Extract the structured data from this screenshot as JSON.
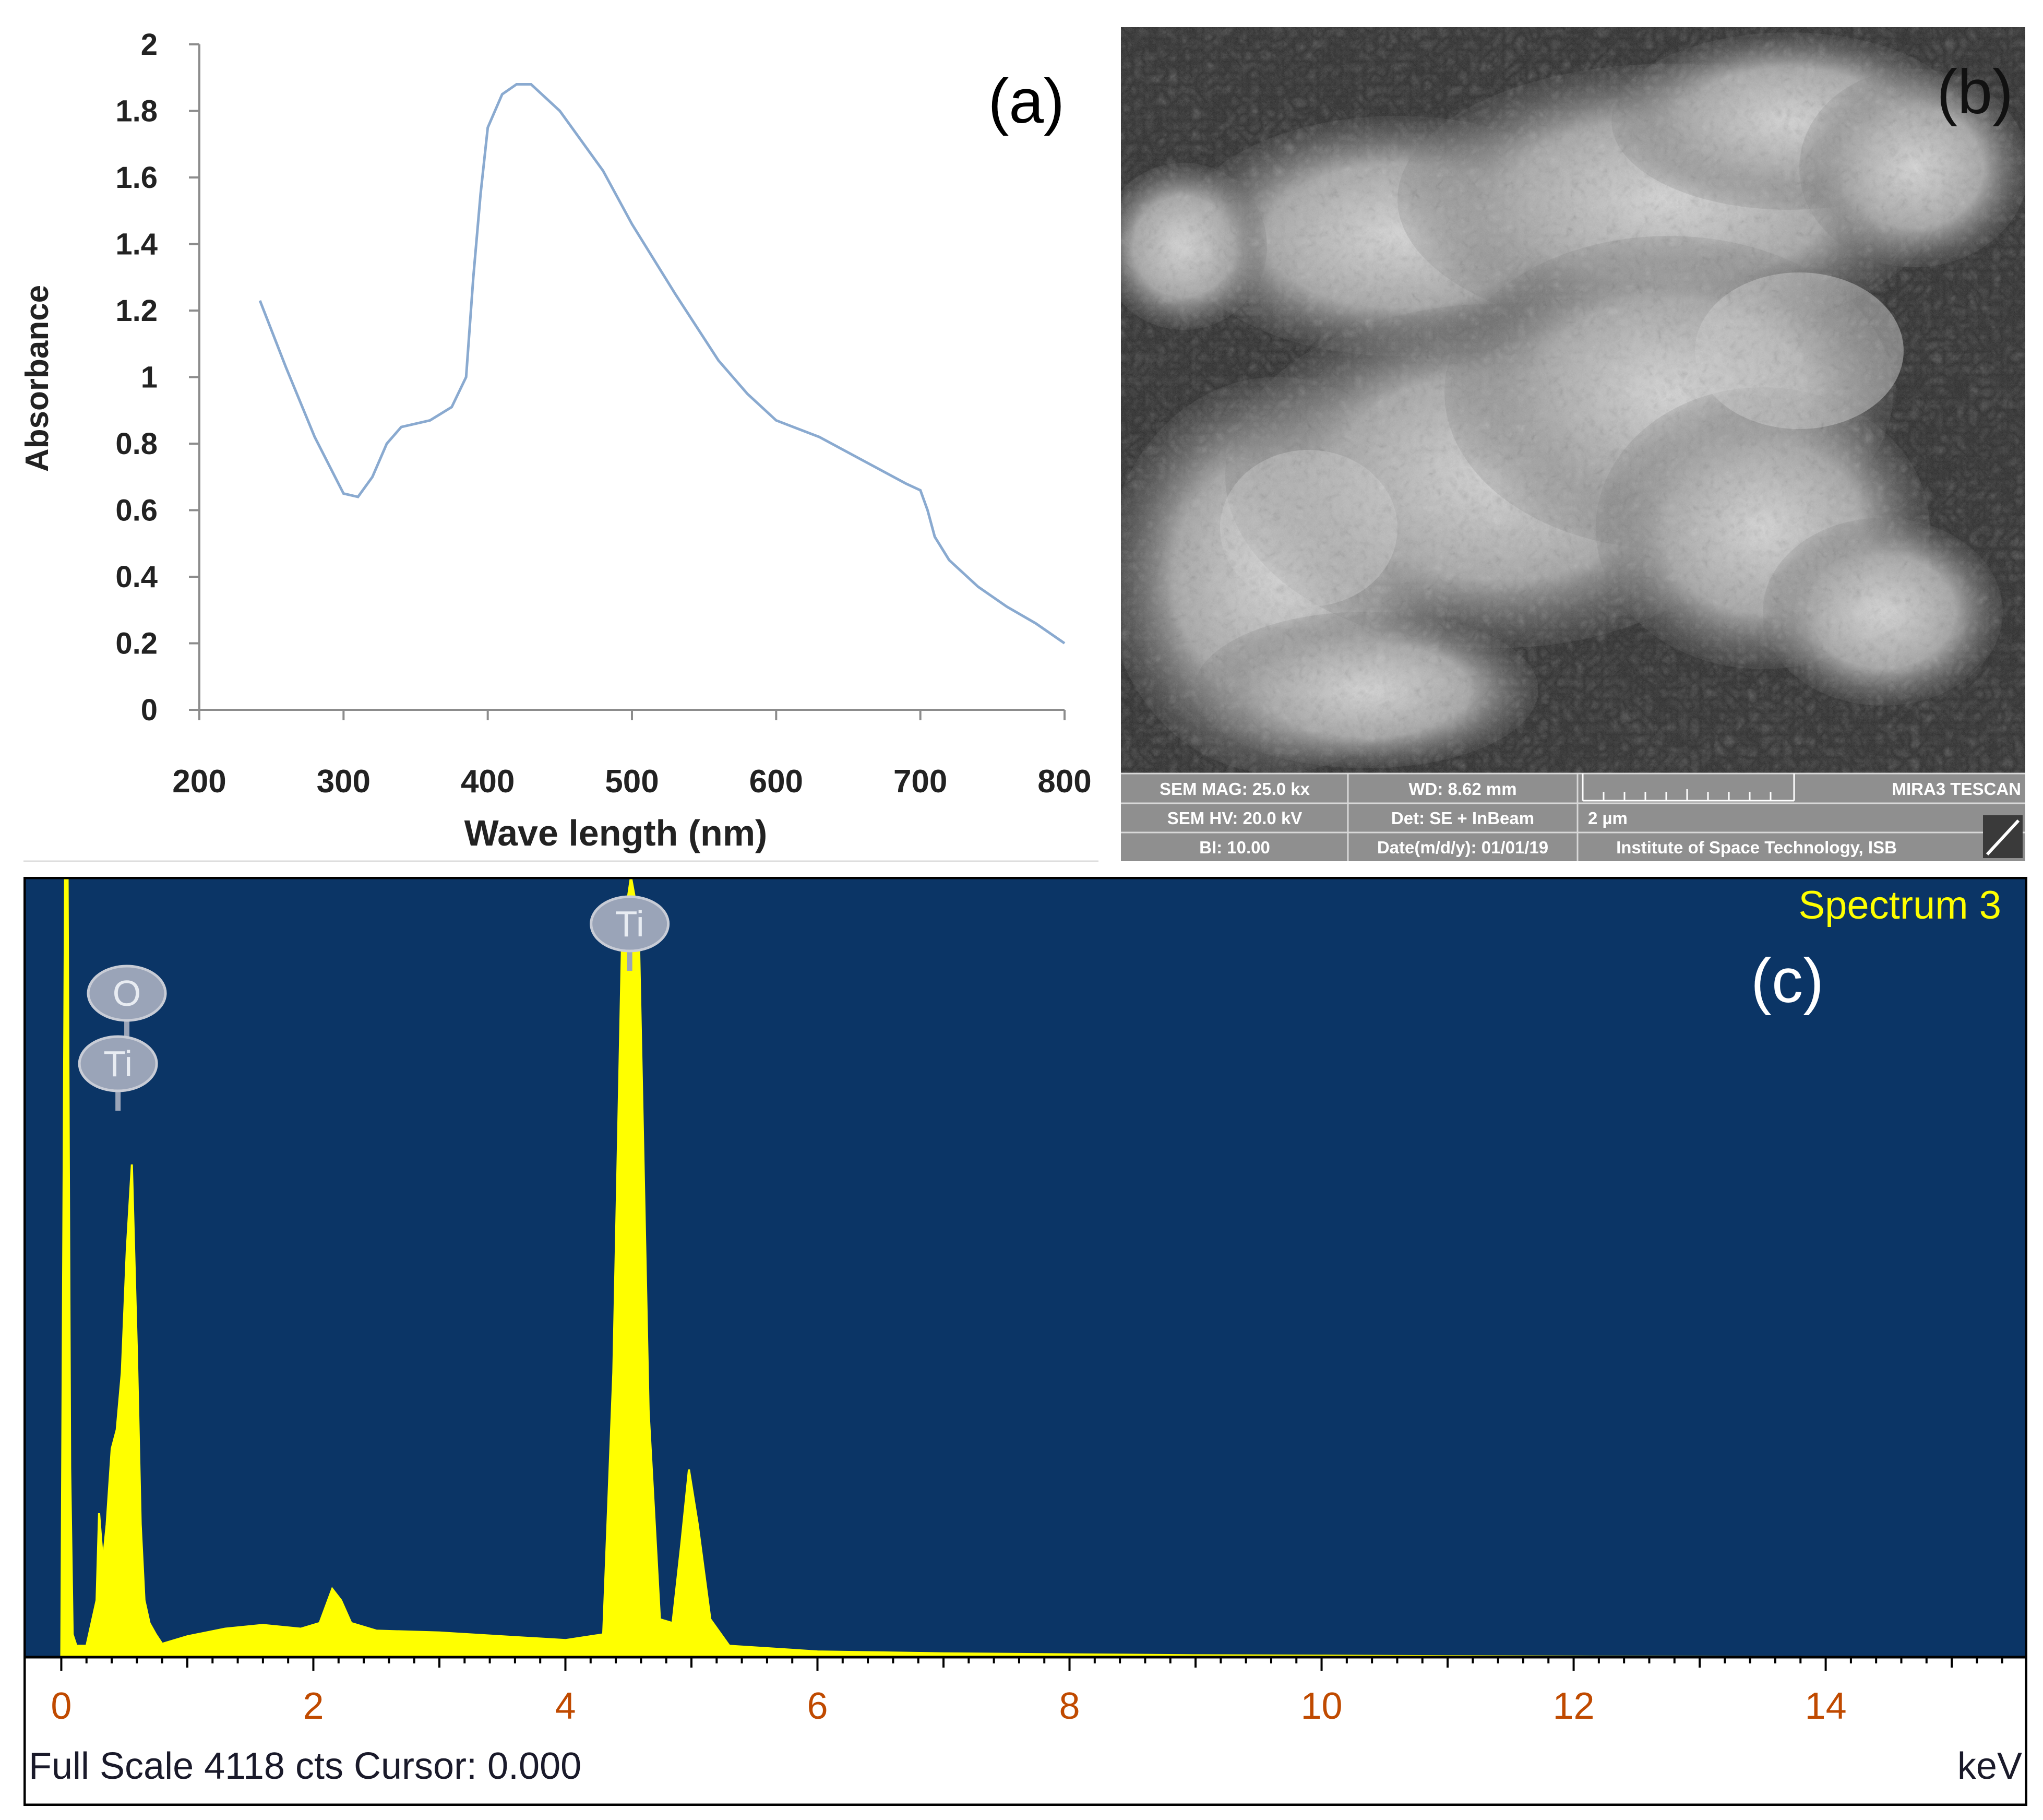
{
  "panels": {
    "a": {
      "tag": "(a)",
      "chart_data": {
        "type": "line",
        "title": "",
        "xlabel": "Wave length (nm)",
        "ylabel": "Absorbance",
        "xlim": [
          200,
          800
        ],
        "ylim": [
          0,
          2
        ],
        "xticks": [
          200,
          300,
          400,
          500,
          600,
          700,
          800
        ],
        "yticks": [
          0,
          0.2,
          0.4,
          0.6,
          0.8,
          1,
          1.2,
          1.4,
          1.6,
          1.8,
          2
        ],
        "grid": false,
        "legend": "none",
        "series": [
          {
            "color": "#8aaad0",
            "x": [
              242,
              260,
              280,
              300,
              310,
              320,
              330,
              340,
              360,
              375,
              385,
              390,
              395,
              400,
              410,
              420,
              430,
              450,
              480,
              500,
              530,
              560,
              580,
              600,
              630,
              660,
              690,
              700,
              705,
              710,
              720,
              740,
              760,
              780,
              800
            ],
            "y": [
              1.23,
              1.03,
              0.82,
              0.65,
              0.64,
              0.7,
              0.8,
              0.85,
              0.87,
              0.91,
              1.0,
              1.3,
              1.55,
              1.75,
              1.85,
              1.88,
              1.88,
              1.8,
              1.62,
              1.46,
              1.25,
              1.05,
              0.95,
              0.87,
              0.82,
              0.75,
              0.68,
              0.66,
              0.6,
              0.52,
              0.45,
              0.37,
              0.31,
              0.26,
              0.2
            ]
          }
        ]
      }
    },
    "b": {
      "tag": "(b)",
      "info_bar": {
        "sem_mag": "SEM MAG: 25.0 kx",
        "wd": "WD: 8.62 mm",
        "brand": "MIRA3 TESCAN",
        "sem_hv": "SEM HV: 20.0 kV",
        "det": "Det: SE + InBeam",
        "scale": "2 µm",
        "bi": "BI: 10.00",
        "date": "Date(m/d/y): 01/01/19",
        "institute": "Institute of Space Technology, ISB"
      }
    },
    "c": {
      "tag": "(c)",
      "spectrum_title": "Spectrum 3",
      "footer": "Full Scale 4118 cts Cursor: 0.000",
      "unit": "keV",
      "colors": {
        "background": "#0b3566",
        "trace": "#ffff00",
        "frame": "#000000"
      },
      "peak_labels": [
        {
          "label": "Ti",
          "energy": 4.51
        },
        {
          "label": "O",
          "energy": 0.52
        },
        {
          "label": "Ti",
          "energy": 0.45
        }
      ],
      "chart_data": {
        "type": "area",
        "title": "",
        "xlabel": "keV",
        "xlim": [
          -0.3,
          15.6
        ],
        "ylim": [
          0,
          4118
        ],
        "xticks": [
          0,
          2,
          4,
          6,
          8,
          10,
          12,
          14
        ],
        "series": [
          {
            "color": "#ffff00",
            "x": [
              0.0,
              0.03,
              0.05,
              0.07,
              0.09,
              0.12,
              0.2,
              0.28,
              0.3,
              0.33,
              0.36,
              0.4,
              0.44,
              0.48,
              0.52,
              0.56,
              0.6,
              0.63,
              0.66,
              0.7,
              0.75,
              0.8,
              1.0,
              1.3,
              1.6,
              1.9,
              2.05,
              2.15,
              2.22,
              2.3,
              2.5,
              3.0,
              3.5,
              4.0,
              4.3,
              4.38,
              4.45,
              4.52,
              4.58,
              4.66,
              4.75,
              4.85,
              4.92,
              4.98,
              5.05,
              5.15,
              5.3,
              6.0,
              7.0,
              8.0,
              9.0,
              10.0,
              11.0,
              12.0,
              13.0,
              14.0,
              15.5
            ],
            "y": [
              0,
              4118,
              4118,
              1000,
              120,
              60,
              60,
              300,
              760,
              500,
              700,
              1100,
              1200,
              1500,
              2150,
              2600,
              1600,
              700,
              300,
              180,
              120,
              70,
              110,
              150,
              170,
              150,
              180,
              360,
              300,
              180,
              140,
              130,
              110,
              90,
              120,
              1500,
              3800,
              4118,
              3900,
              1300,
              200,
              180,
              600,
              990,
              700,
              200,
              60,
              30,
              20,
              15,
              10,
              8,
              5,
              3,
              2,
              1,
              0
            ]
          }
        ]
      }
    }
  }
}
